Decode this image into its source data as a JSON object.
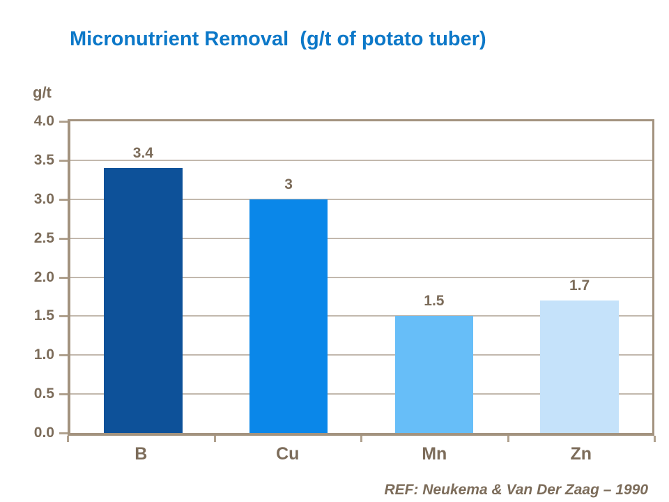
{
  "title": {
    "text": "Micronutrient Removal  (g/t of potato tuber)",
    "color": "#0C78C8"
  },
  "footer": {
    "ref_text": "REF: Neukema & Van Der Zaag – 1990"
  },
  "chart_data": {
    "type": "bar",
    "title": "Micronutrient Removal (g/t of potato tuber)",
    "xlabel": "",
    "ylabel": "g/t",
    "categories": [
      "B",
      "Cu",
      "Mn",
      "Zn"
    ],
    "values": [
      3.4,
      3,
      1.5,
      1.7
    ],
    "value_labels": [
      "3.4",
      "3",
      "1.5",
      "1.7"
    ],
    "bar_colors": [
      "#0D5199",
      "#0A87E9",
      "#67BEF8",
      "#C5E2FA"
    ],
    "ylim": [
      0,
      4
    ],
    "ytick_step": 0.5,
    "ytick_labels": [
      "0.0",
      "0.5",
      "1.0",
      "1.5",
      "2.0",
      "2.5",
      "3.0",
      "3.5",
      "4.0"
    ],
    "grid": true,
    "legend": "none",
    "annotation": "REF: Neukema & Van Der Zaag – 1990",
    "style_colors": {
      "axis": "#A3937F",
      "gridline": "#C2B8AD",
      "tick": "#B0A18E",
      "text": "#7C6C5A",
      "title": "#0C78C8"
    }
  }
}
